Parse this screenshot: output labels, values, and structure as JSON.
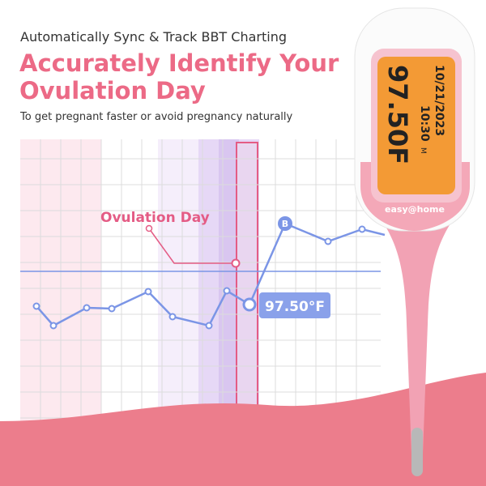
{
  "header": {
    "subtitle": "Automatically Sync & Track BBT Charting",
    "title_lines": [
      "Accurately Identify Your",
      "Ovulation Day"
    ],
    "tagline": "To get pregnant faster or avoid pregnancy naturally"
  },
  "chart": {
    "annotation": "Ovulation Day",
    "marker": "B",
    "reading": "97.50°F"
  },
  "thermometer": {
    "date": "10/21/2023",
    "time": "10:30",
    "period": "M",
    "temperature": "97.50F",
    "brand": "easy@home"
  }
}
